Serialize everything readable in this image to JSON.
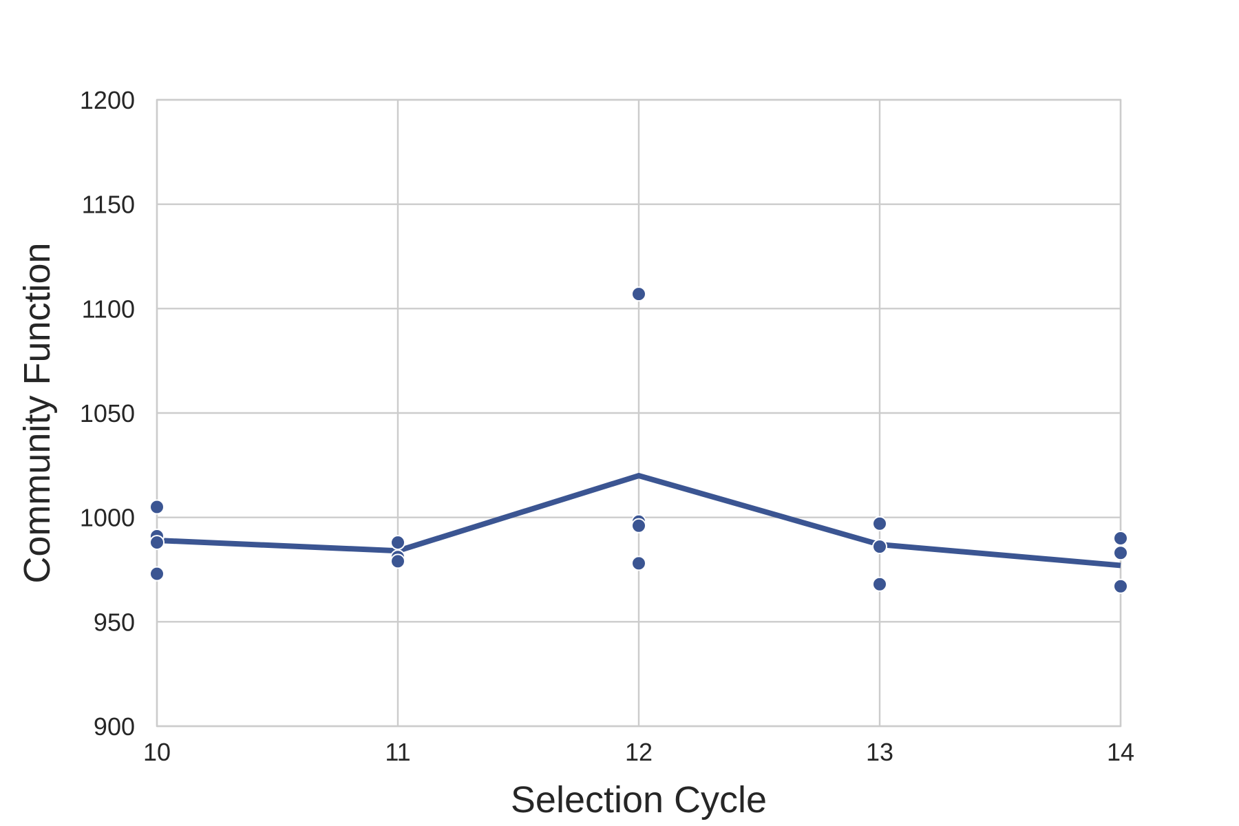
{
  "chart_data": {
    "type": "line",
    "xlabel": "Selection Cycle",
    "ylabel": "Community Function",
    "xlim": [
      10,
      14
    ],
    "ylim": [
      900,
      1200
    ],
    "xticks": [
      10,
      11,
      12,
      13,
      14
    ],
    "yticks": [
      900,
      950,
      1000,
      1050,
      1100,
      1150,
      1200
    ],
    "grid": true,
    "colors": {
      "series": "#3b5592",
      "grid": "#cccccc",
      "text": "#262626"
    },
    "series": [
      {
        "type": "line",
        "x": [
          10,
          11,
          12,
          13,
          14
        ],
        "y": [
          989,
          984,
          1020,
          987,
          977
        ]
      },
      {
        "type": "scatter",
        "points": [
          {
            "x": 10,
            "y": 1005
          },
          {
            "x": 10,
            "y": 991
          },
          {
            "x": 10,
            "y": 988
          },
          {
            "x": 10,
            "y": 973
          },
          {
            "x": 11,
            "y": 988
          },
          {
            "x": 11,
            "y": 981
          },
          {
            "x": 11,
            "y": 979
          },
          {
            "x": 12,
            "y": 1107
          },
          {
            "x": 12,
            "y": 998
          },
          {
            "x": 12,
            "y": 996
          },
          {
            "x": 12,
            "y": 978
          },
          {
            "x": 13,
            "y": 997
          },
          {
            "x": 13,
            "y": 986
          },
          {
            "x": 13,
            "y": 968
          },
          {
            "x": 14,
            "y": 990
          },
          {
            "x": 14,
            "y": 983
          },
          {
            "x": 14,
            "y": 967
          }
        ]
      }
    ]
  }
}
